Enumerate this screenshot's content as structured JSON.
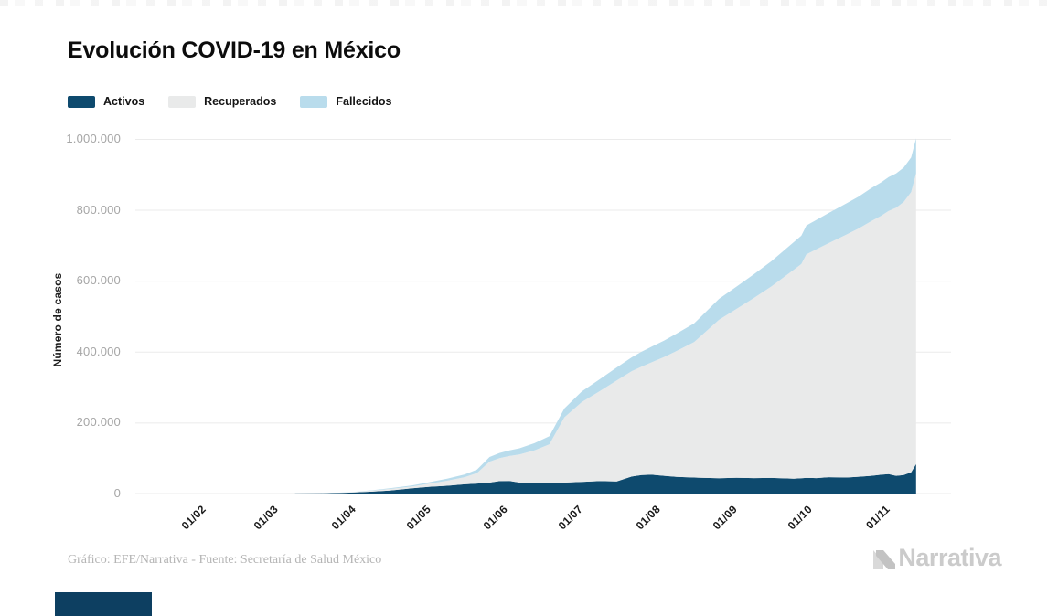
{
  "page": {
    "title": "Evolución COVID-19 en México"
  },
  "footer": {
    "credit": "Gráfico: EFE/Narrativa - Fuente: Secretaría de Salud México",
    "watermark": "Narrativa"
  },
  "colors": {
    "activos": "#0e4a6e",
    "recuperados": "#e9eaea",
    "fallecidos": "#b9dcec",
    "grid": "#ebebeb",
    "corner_block": "#0d3f61"
  },
  "chart_data": {
    "type": "area",
    "stacked": true,
    "title": "Evolución COVID-19 en México",
    "xlabel": "",
    "ylabel": "Número de casos",
    "grid": "horizontal",
    "legend_position": "top-left",
    "ylim": [
      0,
      1005000
    ],
    "yticks": [
      0,
      200000,
      400000,
      600000,
      800000,
      1000000
    ],
    "ytick_labels": [
      "0",
      "200.000",
      "400.000",
      "600.000",
      "800.000",
      "1.000.000"
    ],
    "xtick_labels": [
      "01/02",
      "01/03",
      "01/04",
      "01/05",
      "01/06",
      "01/07",
      "01/08",
      "01/09",
      "01/10",
      "01/11"
    ],
    "x_domain_days": [
      -21,
      306
    ],
    "x_dates": [
      "15/03",
      "25/03",
      "01/04",
      "08/04",
      "15/04",
      "22/04",
      "01/05",
      "08/05",
      "15/05",
      "22/05",
      "27/05",
      "01/06",
      "05/06",
      "09/06",
      "13/06",
      "19/06",
      "25/06",
      "01/07",
      "08/07",
      "15/07",
      "22/07",
      "28/07",
      "01/08",
      "05/08",
      "10/08",
      "15/08",
      "22/08",
      "01/09",
      "08/09",
      "15/09",
      "22/09",
      "01/10",
      "04/10",
      "06/10",
      "10/10",
      "15/10",
      "22/10",
      "27/10",
      "01/11",
      "05/11",
      "08/11",
      "11/11",
      "14/11",
      "17/11",
      "19/11"
    ],
    "series": [
      {
        "name": "Activos",
        "color": "#0e4a6e",
        "values": [
          150,
          600,
          1500,
          3000,
          5500,
          8500,
          15000,
          19000,
          22000,
          26000,
          28000,
          31000,
          35000,
          35500,
          31000,
          30000,
          30500,
          31000,
          33000,
          35000,
          34000,
          48000,
          52000,
          53000,
          50000,
          47000,
          45000,
          43000,
          44500,
          43500,
          44000,
          42000,
          43000,
          44000,
          43500,
          46000,
          45000,
          47500,
          50000,
          53000,
          55000,
          50000,
          52000,
          60000,
          83000
        ]
      },
      {
        "name": "Recuperados",
        "color": "#e9eaea",
        "values": [
          30,
          150,
          600,
          1500,
          2800,
          4500,
          5000,
          9000,
          14000,
          20000,
          30000,
          59000,
          65000,
          70500,
          79000,
          92000,
          108500,
          184000,
          225000,
          253000,
          285000,
          297000,
          306000,
          317000,
          335000,
          355000,
          382000,
          447000,
          476000,
          508000,
          540000,
          589000,
          604000,
          630000,
          645000,
          660000,
          685000,
          700000,
          718000,
          730000,
          742000,
          756000,
          770000,
          790000,
          820000
        ]
      },
      {
        "name": "Fallecidos",
        "color": "#b9dcec",
        "values": [
          5,
          30,
          150,
          450,
          1000,
          1800,
          3000,
          4200,
          5800,
          7800,
          9500,
          13000,
          14500,
          16000,
          17500,
          20000,
          22500,
          25000,
          30000,
          33500,
          36500,
          39000,
          42000,
          44000,
          46500,
          49000,
          52500,
          59000,
          63000,
          67000,
          71000,
          78000,
          80000,
          81500,
          83000,
          85000,
          88000,
          90000,
          93000,
          94500,
          95500,
          96500,
          97000,
          97500,
          98500
        ]
      }
    ]
  }
}
